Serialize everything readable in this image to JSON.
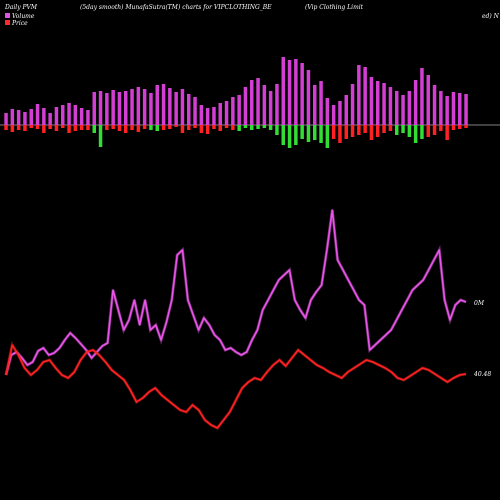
{
  "header": {
    "left": "Daily PVM",
    "mid": "(5day smooth) MunafaSutra(TM) charts for VIPCLOTHING_BE",
    "right": "(Vip Clothing Limit",
    "right2": "ed) N"
  },
  "legend": {
    "volume_label": "Volume",
    "price_label": "Price",
    "volume_color": "#e055e0",
    "price_color": "#ff2a2a"
  },
  "colors": {
    "volume_up": "#d23fd2",
    "volume_down_bar": "#33dd33",
    "price_up_bar": "#d23fd2",
    "price_down_bar": "#ff2222",
    "volume_line": "#e855e8",
    "price_line": "#ff2222",
    "background": "#000000",
    "baseline": "#ffffff"
  },
  "chart_data": {
    "type": "line",
    "right_labels": {
      "volume": "0M",
      "price": "40.48"
    },
    "volume_bars": [
      12,
      16,
      15,
      13,
      16,
      21,
      17,
      12,
      18,
      20,
      22,
      20,
      17,
      15,
      33,
      34,
      32,
      35,
      33,
      34,
      36,
      38,
      36,
      32,
      40,
      41,
      37,
      33,
      36,
      31,
      28,
      20,
      17,
      18,
      22,
      24,
      28,
      30,
      38,
      45,
      47,
      40,
      34,
      41,
      68,
      65,
      66,
      62,
      55,
      40,
      44,
      27,
      20,
      24,
      30,
      41,
      60,
      58,
      48,
      44,
      42,
      38,
      34,
      30,
      34,
      45,
      57,
      50,
      40,
      34,
      29,
      33,
      32,
      31
    ],
    "lower_bars": [
      -5,
      -7,
      -5,
      -6,
      -3,
      -4,
      -8,
      -4,
      -6,
      -3,
      -8,
      -6,
      -5,
      -5,
      -8,
      -22,
      -5,
      -4,
      -6,
      -8,
      -5,
      -7,
      -4,
      -5,
      -6,
      -5,
      -4,
      -2,
      -8,
      -5,
      -3,
      -8,
      -9,
      -4,
      -6,
      -3,
      -5,
      -6,
      -3,
      -5,
      -4,
      -3,
      -5,
      -10,
      -20,
      -23,
      -20,
      -14,
      -17,
      -15,
      -18,
      -23,
      -14,
      -18,
      -14,
      -12,
      -10,
      -8,
      -15,
      -12,
      -8,
      -6,
      -10,
      -8,
      -12,
      -18,
      -14,
      -12,
      -10,
      -6,
      -15,
      -5,
      -4,
      -3
    ],
    "lower_colors": [
      "r",
      "r",
      "r",
      "r",
      "r",
      "r",
      "r",
      "r",
      "r",
      "r",
      "r",
      "r",
      "r",
      "r",
      "g",
      "g",
      "r",
      "r",
      "r",
      "r",
      "r",
      "r",
      "r",
      "g",
      "g",
      "r",
      "r",
      "r",
      "r",
      "r",
      "r",
      "r",
      "r",
      "r",
      "r",
      "r",
      "r",
      "g",
      "g",
      "g",
      "g",
      "g",
      "g",
      "g",
      "g",
      "g",
      "g",
      "g",
      "g",
      "g",
      "g",
      "g",
      "r",
      "r",
      "r",
      "r",
      "r",
      "r",
      "r",
      "r",
      "r",
      "r",
      "g",
      "g",
      "g",
      "g",
      "g",
      "r",
      "r",
      "r",
      "r",
      "r",
      "r",
      "r"
    ],
    "volume_line": [
      375,
      355,
      352,
      358,
      365,
      362,
      351,
      348,
      355,
      353,
      348,
      340,
      333,
      338,
      344,
      350,
      358,
      352,
      346,
      343,
      290,
      310,
      330,
      320,
      300,
      325,
      300,
      330,
      325,
      340,
      322,
      300,
      255,
      250,
      300,
      315,
      330,
      318,
      325,
      335,
      340,
      350,
      348,
      352,
      355,
      352,
      340,
      330,
      310,
      300,
      290,
      280,
      275,
      270,
      300,
      310,
      318,
      300,
      292,
      285,
      250,
      210,
      260,
      270,
      280,
      290,
      300,
      305,
      350,
      345,
      340,
      335,
      330,
      320,
      310,
      300,
      290,
      285,
      280,
      270,
      260,
      250,
      300,
      320,
      305,
      300,
      302
    ],
    "price_line": [
      375,
      345,
      355,
      368,
      375,
      370,
      362,
      360,
      368,
      375,
      378,
      372,
      360,
      352,
      350,
      355,
      362,
      370,
      375,
      380,
      390,
      402,
      398,
      392,
      388,
      395,
      400,
      405,
      410,
      412,
      405,
      410,
      420,
      425,
      428,
      420,
      412,
      400,
      388,
      382,
      378,
      380,
      372,
      365,
      360,
      366,
      358,
      350,
      355,
      360,
      365,
      368,
      372,
      375,
      378,
      372,
      368,
      364,
      360,
      362,
      365,
      368,
      372,
      378,
      380,
      376,
      372,
      368,
      370,
      374,
      378,
      382,
      378,
      375,
      374
    ]
  }
}
